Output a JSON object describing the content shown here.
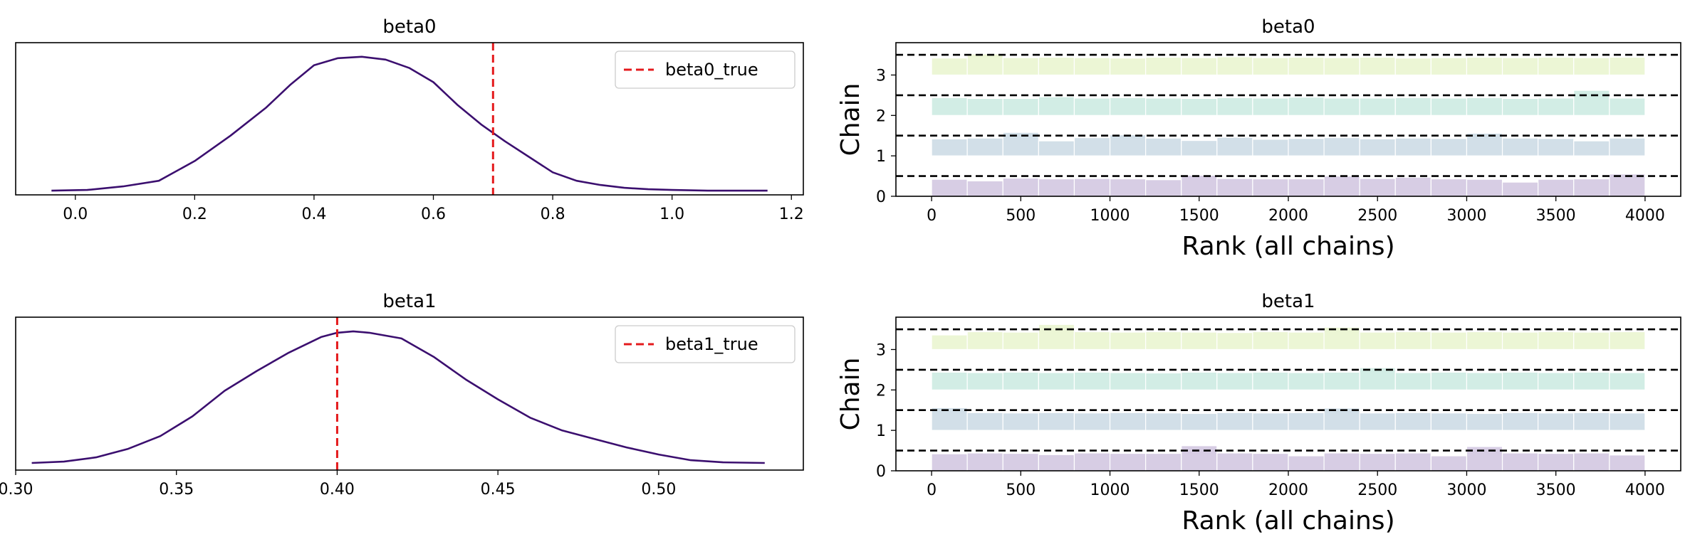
{
  "chart_data": [
    {
      "type": "line",
      "title": "beta0",
      "xlabel": "",
      "ylabel": "",
      "xlim": [
        -0.1,
        1.22
      ],
      "xticks": [
        0.0,
        0.2,
        0.4,
        0.6,
        0.8,
        1.0,
        1.2
      ],
      "x": [
        -0.04,
        0.02,
        0.08,
        0.14,
        0.2,
        0.26,
        0.32,
        0.36,
        0.4,
        0.44,
        0.48,
        0.52,
        0.56,
        0.6,
        0.64,
        0.68,
        0.72,
        0.76,
        0.8,
        0.84,
        0.88,
        0.92,
        0.96,
        1.0,
        1.06,
        1.16
      ],
      "y": [
        0.03,
        0.035,
        0.06,
        0.1,
        0.24,
        0.42,
        0.62,
        0.78,
        0.92,
        0.97,
        0.98,
        0.96,
        0.9,
        0.8,
        0.64,
        0.5,
        0.38,
        0.27,
        0.16,
        0.1,
        0.07,
        0.05,
        0.04,
        0.035,
        0.03,
        0.03
      ],
      "line_color": "#3b0f6f",
      "reference_line": {
        "value": 0.7,
        "color": "#e41a1c",
        "label": "beta0_true"
      },
      "legend": {
        "position": "top-right",
        "entries": [
          "beta0_true"
        ]
      }
    },
    {
      "type": "bar",
      "title": "beta0",
      "xlabel": "Rank (all chains)",
      "ylabel": "Chain",
      "xlim": [
        -200,
        4200
      ],
      "xticks": [
        0,
        500,
        1000,
        1500,
        2000,
        2500,
        3000,
        3500,
        4000
      ],
      "yticks": [
        0,
        1,
        2,
        3
      ],
      "bin_edges": [
        0,
        200,
        400,
        600,
        800,
        1000,
        1200,
        1400,
        1600,
        1800,
        2000,
        2200,
        2400,
        2600,
        2800,
        3000,
        3200,
        3400,
        3600,
        3800,
        4000
      ],
      "series": [
        {
          "name": "0",
          "color": "#d7cde4",
          "values": [
            0.42,
            0.38,
            0.45,
            0.43,
            0.44,
            0.43,
            0.41,
            0.52,
            0.44,
            0.43,
            0.43,
            0.5,
            0.44,
            0.47,
            0.43,
            0.42,
            0.35,
            0.42,
            0.43,
            0.55
          ]
        },
        {
          "name": "1",
          "color": "#d2dfe8",
          "values": [
            0.42,
            0.44,
            0.58,
            0.37,
            0.45,
            0.52,
            0.44,
            0.38,
            0.46,
            0.41,
            0.43,
            0.45,
            0.42,
            0.44,
            0.43,
            0.56,
            0.44,
            0.43,
            0.37,
            0.44
          ]
        },
        {
          "name": "2",
          "color": "#d2ede5",
          "values": [
            0.44,
            0.42,
            0.42,
            0.46,
            0.43,
            0.44,
            0.43,
            0.42,
            0.44,
            0.43,
            0.45,
            0.43,
            0.43,
            0.44,
            0.43,
            0.44,
            0.42,
            0.43,
            0.62,
            0.43
          ]
        },
        {
          "name": "3",
          "color": "#ecf6d5",
          "values": [
            0.42,
            0.52,
            0.43,
            0.44,
            0.43,
            0.42,
            0.44,
            0.43,
            0.45,
            0.43,
            0.44,
            0.43,
            0.44,
            0.42,
            0.43,
            0.44,
            0.43,
            0.44,
            0.43,
            0.44
          ]
        }
      ],
      "reference_lines_y": [
        0.5,
        1.5,
        2.5,
        3.5
      ]
    },
    {
      "type": "line",
      "title": "beta1",
      "xlabel": "",
      "ylabel": "",
      "xlim": [
        0.3,
        0.545
      ],
      "xticks": [
        0.3,
        0.35,
        0.4,
        0.45,
        0.5
      ],
      "x": [
        0.305,
        0.315,
        0.325,
        0.335,
        0.345,
        0.355,
        0.365,
        0.375,
        0.385,
        0.395,
        0.4,
        0.405,
        0.41,
        0.42,
        0.43,
        0.44,
        0.45,
        0.46,
        0.47,
        0.48,
        0.49,
        0.5,
        0.51,
        0.52,
        0.533
      ],
      "y": [
        0.05,
        0.06,
        0.09,
        0.15,
        0.24,
        0.38,
        0.56,
        0.7,
        0.83,
        0.94,
        0.97,
        0.98,
        0.97,
        0.93,
        0.8,
        0.64,
        0.5,
        0.37,
        0.28,
        0.22,
        0.16,
        0.11,
        0.07,
        0.055,
        0.05
      ],
      "line_color": "#3b0f6f",
      "reference_line": {
        "value": 0.4,
        "color": "#e41a1c",
        "label": "beta1_true"
      },
      "legend": {
        "position": "top-right",
        "entries": [
          "beta1_true"
        ]
      }
    },
    {
      "type": "bar",
      "title": "beta1",
      "xlabel": "Rank (all chains)",
      "ylabel": "Chain",
      "xlim": [
        -200,
        4200
      ],
      "xticks": [
        0,
        500,
        1000,
        1500,
        2000,
        2500,
        3000,
        3500,
        4000
      ],
      "yticks": [
        0,
        1,
        2,
        3
      ],
      "bin_edges": [
        0,
        200,
        400,
        600,
        800,
        1000,
        1200,
        1400,
        1600,
        1800,
        2000,
        2200,
        2400,
        2600,
        2800,
        3000,
        3200,
        3400,
        3600,
        3800,
        4000
      ],
      "series": [
        {
          "name": "0",
          "color": "#d7cde4",
          "values": [
            0.42,
            0.44,
            0.43,
            0.4,
            0.44,
            0.43,
            0.43,
            0.62,
            0.44,
            0.43,
            0.37,
            0.44,
            0.43,
            0.44,
            0.37,
            0.6,
            0.44,
            0.43,
            0.44,
            0.39
          ]
        },
        {
          "name": "1",
          "color": "#d2dfe8",
          "values": [
            0.56,
            0.44,
            0.43,
            0.44,
            0.43,
            0.44,
            0.43,
            0.42,
            0.44,
            0.43,
            0.44,
            0.55,
            0.43,
            0.44,
            0.43,
            0.42,
            0.44,
            0.43,
            0.44,
            0.43
          ]
        },
        {
          "name": "2",
          "color": "#d2ede5",
          "values": [
            0.44,
            0.43,
            0.44,
            0.43,
            0.44,
            0.43,
            0.42,
            0.44,
            0.43,
            0.44,
            0.43,
            0.44,
            0.55,
            0.43,
            0.44,
            0.43,
            0.44,
            0.43,
            0.44,
            0.43
          ]
        },
        {
          "name": "3",
          "color": "#ecf6d5",
          "values": [
            0.36,
            0.44,
            0.43,
            0.62,
            0.44,
            0.43,
            0.44,
            0.43,
            0.42,
            0.44,
            0.43,
            0.55,
            0.43,
            0.44,
            0.43,
            0.44,
            0.43,
            0.44,
            0.43,
            0.44
          ]
        }
      ],
      "reference_lines_y": [
        0.5,
        1.5,
        2.5,
        3.5
      ]
    }
  ]
}
